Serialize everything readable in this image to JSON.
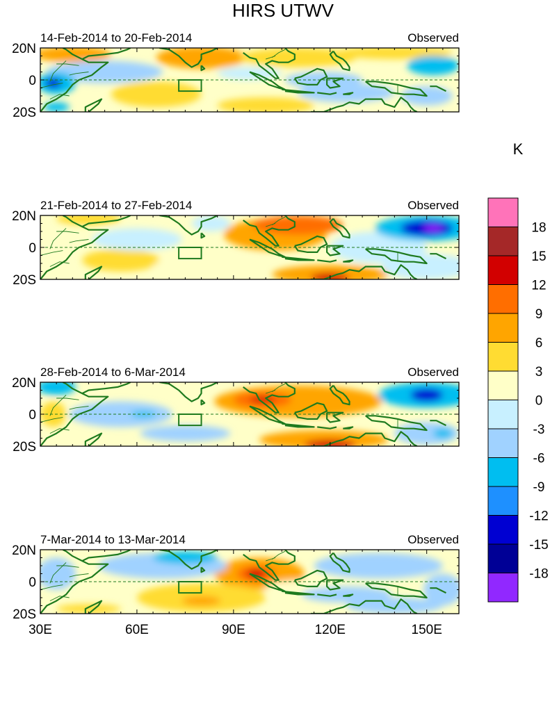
{
  "chart_data": {
    "type": "heatmap",
    "title": "HIRS UTWV",
    "units_label": "K",
    "x_ticks": [
      {
        "value": 30,
        "label": "30E"
      },
      {
        "value": 60,
        "label": "60E"
      },
      {
        "value": 90,
        "label": "90E"
      },
      {
        "value": 120,
        "label": "120E"
      },
      {
        "value": 150,
        "label": "150E"
      }
    ],
    "y_ticks": [
      {
        "value": 20,
        "label": "20N"
      },
      {
        "value": 0,
        "label": "0"
      },
      {
        "value": -20,
        "label": "20S"
      }
    ],
    "xlim": [
      30,
      160
    ],
    "ylim": [
      -20,
      20
    ],
    "box_region": {
      "lon": [
        73,
        80
      ],
      "lat": [
        -7,
        0
      ]
    },
    "colorbar": {
      "levels": [
        18,
        15,
        12,
        9,
        6,
        3,
        0,
        -3,
        -6,
        -9,
        -12,
        -15,
        -18
      ],
      "colors": [
        "#ff73b9",
        "#a52828",
        "#d20000",
        "#ff6e00",
        "#ffa500",
        "#ffdc32",
        "#ffffc8",
        "#c8f0ff",
        "#a0d2ff",
        "#00bef0",
        "#1e90ff",
        "#0000d2",
        "#000096",
        "#9128ff"
      ]
    },
    "panels": [
      {
        "label_left": "14-Feb-2014 to 20-Feb-2014",
        "label_right": "Observed",
        "blobs": [
          {
            "lon": 40,
            "lat": 16,
            "rx": 12,
            "ry": 5,
            "value": 7
          },
          {
            "lon": 80,
            "lat": 14,
            "rx": 14,
            "ry": 7,
            "value": 6
          },
          {
            "lon": 110,
            "lat": 14,
            "rx": 18,
            "ry": 6,
            "value": 5
          },
          {
            "lon": 140,
            "lat": 17,
            "rx": 18,
            "ry": 4,
            "value": 5
          },
          {
            "lon": 66,
            "lat": -9,
            "rx": 14,
            "ry": 8,
            "value": 4
          },
          {
            "lon": 100,
            "lat": -16,
            "rx": 15,
            "ry": 5,
            "value": 4
          },
          {
            "lon": 50,
            "lat": 5,
            "rx": 18,
            "ry": 7,
            "value": -5
          },
          {
            "lon": 35,
            "lat": -2,
            "rx": 6,
            "ry": 7,
            "value": -9
          },
          {
            "lon": 34,
            "lat": -2,
            "rx": 2.5,
            "ry": 3,
            "value": -14
          },
          {
            "lon": 125,
            "lat": -8,
            "rx": 15,
            "ry": 6,
            "value": -4
          },
          {
            "lon": 152,
            "lat": 9,
            "rx": 8,
            "ry": 6,
            "value": -8
          },
          {
            "lon": 118,
            "lat": 0,
            "rx": 12,
            "ry": 5,
            "value": -4
          },
          {
            "lon": 150,
            "lat": -10,
            "rx": 8,
            "ry": 6,
            "value": -4
          },
          {
            "lon": 95,
            "lat": 4,
            "rx": 10,
            "ry": 4,
            "value": -3
          },
          {
            "lon": 35,
            "lat": -17,
            "rx": 4,
            "ry": 3,
            "value": -8
          }
        ]
      },
      {
        "label_left": "21-Feb-2014 to 27-Feb-2014",
        "label_right": "Observed",
        "blobs": [
          {
            "lon": 103,
            "lat": 8,
            "rx": 16,
            "ry": 10,
            "value": 7
          },
          {
            "lon": 110,
            "lat": 14,
            "rx": 14,
            "ry": 6,
            "value": 10
          },
          {
            "lon": 120,
            "lat": -17,
            "rx": 18,
            "ry": 6,
            "value": 8
          },
          {
            "lon": 120,
            "lat": -19,
            "rx": 6,
            "ry": 3,
            "value": 13
          },
          {
            "lon": 45,
            "lat": 18,
            "rx": 10,
            "ry": 4,
            "value": 4
          },
          {
            "lon": 55,
            "lat": -8,
            "rx": 12,
            "ry": 7,
            "value": 3
          },
          {
            "lon": 75,
            "lat": -12,
            "rx": 10,
            "ry": 5,
            "value": 2
          },
          {
            "lon": 60,
            "lat": 5,
            "rx": 14,
            "ry": 7,
            "value": -3
          },
          {
            "lon": 135,
            "lat": 0,
            "rx": 15,
            "ry": 10,
            "value": -2
          },
          {
            "lon": 150,
            "lat": 12,
            "rx": 16,
            "ry": 8,
            "value": -7
          },
          {
            "lon": 150,
            "lat": 12,
            "rx": 8,
            "ry": 5,
            "value": -13
          },
          {
            "lon": 152,
            "lat": 12,
            "rx": 3,
            "ry": 2,
            "value": -19
          },
          {
            "lon": 150,
            "lat": -12,
            "rx": 14,
            "ry": 8,
            "value": -3
          },
          {
            "lon": 83,
            "lat": 15,
            "rx": 6,
            "ry": 5,
            "value": -3
          }
        ]
      },
      {
        "label_left": "28-Feb-2014 to 6-Mar-2014",
        "label_right": "Observed",
        "blobs": [
          {
            "lon": 110,
            "lat": 8,
            "rx": 26,
            "ry": 10,
            "value": 6
          },
          {
            "lon": 99,
            "lat": 9,
            "rx": 9,
            "ry": 5,
            "value": 9
          },
          {
            "lon": 99,
            "lat": 9,
            "rx": 4,
            "ry": 2,
            "value": 14
          },
          {
            "lon": 118,
            "lat": 9,
            "rx": 8,
            "ry": 4,
            "value": 8
          },
          {
            "lon": 118,
            "lat": -16,
            "rx": 20,
            "ry": 6,
            "value": 7
          },
          {
            "lon": 120,
            "lat": -19,
            "rx": 8,
            "ry": 3,
            "value": 14
          },
          {
            "lon": 35,
            "lat": 17,
            "rx": 6,
            "ry": 5,
            "value": -8
          },
          {
            "lon": 55,
            "lat": 0,
            "rx": 16,
            "ry": 8,
            "value": -4
          },
          {
            "lon": 62,
            "lat": 0,
            "rx": 4,
            "ry": 2,
            "value": -8
          },
          {
            "lon": 150,
            "lat": 12,
            "rx": 15,
            "ry": 8,
            "value": -7
          },
          {
            "lon": 150,
            "lat": 12,
            "rx": 5,
            "ry": 4,
            "value": -13
          },
          {
            "lon": 150,
            "lat": -12,
            "rx": 10,
            "ry": 7,
            "value": -5
          },
          {
            "lon": 155,
            "lat": -12,
            "rx": 3,
            "ry": 3,
            "value": -8
          },
          {
            "lon": 34,
            "lat": 0,
            "rx": 4,
            "ry": 8,
            "value": 4
          },
          {
            "lon": 75,
            "lat": -12,
            "rx": 14,
            "ry": 5,
            "value": -4
          }
        ]
      },
      {
        "label_left": "7-Mar-2014 to 13-Mar-2014",
        "label_right": "Observed",
        "blobs": [
          {
            "lon": 98,
            "lat": 5,
            "rx": 14,
            "ry": 10,
            "value": 7
          },
          {
            "lon": 97,
            "lat": 5,
            "rx": 6,
            "ry": 5,
            "value": 11
          },
          {
            "lon": 97,
            "lat": 5,
            "rx": 3,
            "ry": 3,
            "value": 14
          },
          {
            "lon": 80,
            "lat": -10,
            "rx": 20,
            "ry": 9,
            "value": 4
          },
          {
            "lon": 80,
            "lat": -12,
            "rx": 6,
            "ry": 3,
            "value": 7
          },
          {
            "lon": 45,
            "lat": -17,
            "rx": 10,
            "ry": 3,
            "value": 5
          },
          {
            "lon": 110,
            "lat": -5,
            "rx": 10,
            "ry": 6,
            "value": 2
          },
          {
            "lon": 68,
            "lat": 10,
            "rx": 20,
            "ry": 8,
            "value": -5
          },
          {
            "lon": 75,
            "lat": 15,
            "rx": 10,
            "ry": 4,
            "value": -8
          },
          {
            "lon": 35,
            "lat": 5,
            "rx": 6,
            "ry": 10,
            "value": -6
          },
          {
            "lon": 135,
            "lat": 10,
            "rx": 20,
            "ry": 8,
            "value": -4
          },
          {
            "lon": 125,
            "lat": -8,
            "rx": 14,
            "ry": 5,
            "value": -5
          },
          {
            "lon": 140,
            "lat": -15,
            "rx": 15,
            "ry": 5,
            "value": -5
          },
          {
            "lon": 155,
            "lat": -5,
            "rx": 6,
            "ry": 10,
            "value": -6
          }
        ]
      }
    ]
  }
}
